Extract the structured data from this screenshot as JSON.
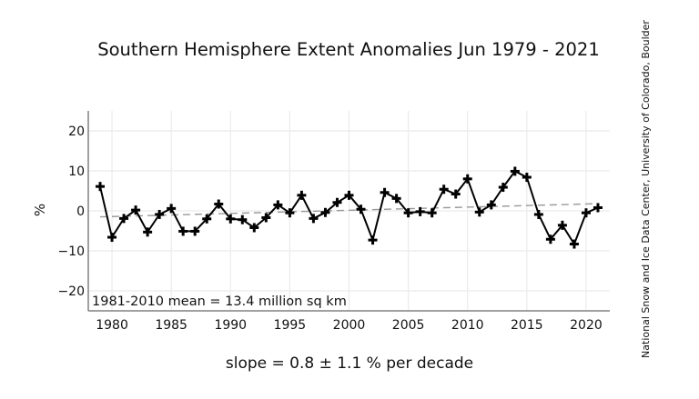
{
  "chart_data": {
    "type": "line",
    "title": "Southern Hemisphere Extent Anomalies Jun 1979 - 2021",
    "xlabel": "slope = 0.8 ± 1.1 % per decade",
    "ylabel": "%",
    "annotation": "1981-2010 mean = 13.4 million sq km",
    "credit": "National Snow and Ice Data Center, University of Colorado, Boulder",
    "xlim": [
      1978,
      2022
    ],
    "ylim": [
      -25,
      25
    ],
    "x_ticks": [
      1980,
      1985,
      1990,
      1995,
      2000,
      2005,
      2010,
      2015,
      2020
    ],
    "y_ticks": [
      -20,
      -10,
      0,
      10,
      20
    ],
    "x_tick_labels": [
      "1980",
      "1985",
      "1990",
      "1995",
      "2000",
      "2005",
      "2010",
      "2015",
      "2020"
    ],
    "y_tick_labels": [
      "−20",
      "−10",
      "0",
      "10",
      "20"
    ],
    "grid": true,
    "series": [
      {
        "name": "Extent anomaly",
        "style": "solid line with plus markers",
        "color": "#000000",
        "x": [
          1979,
          1980,
          1981,
          1982,
          1983,
          1984,
          1985,
          1986,
          1987,
          1988,
          1989,
          1990,
          1991,
          1992,
          1993,
          1994,
          1995,
          1996,
          1997,
          1998,
          1999,
          2000,
          2001,
          2002,
          2003,
          2004,
          2005,
          2006,
          2007,
          2008,
          2009,
          2010,
          2011,
          2012,
          2013,
          2014,
          2015,
          2016,
          2017,
          2018,
          2019,
          2020,
          2021
        ],
        "values": [
          6.1,
          -6.6,
          -1.9,
          0.2,
          -5.3,
          -0.9,
          0.6,
          -5.1,
          -5.1,
          -2.0,
          1.7,
          -2.0,
          -2.2,
          -4.2,
          -1.7,
          1.5,
          -0.5,
          3.9,
          -1.9,
          -0.4,
          2.1,
          3.9,
          0.4,
          -7.3,
          4.6,
          3.1,
          -0.5,
          -0.2,
          -0.5,
          5.4,
          4.2,
          8.0,
          -0.3,
          1.5,
          5.9,
          9.9,
          8.4,
          -0.9,
          -7.1,
          -3.6,
          -8.3,
          -0.5,
          0.8
        ]
      },
      {
        "name": "Trend",
        "style": "dashed",
        "color": "#999999",
        "x": [
          1979,
          2021
        ],
        "values": [
          -1.5,
          1.8
        ]
      }
    ]
  }
}
